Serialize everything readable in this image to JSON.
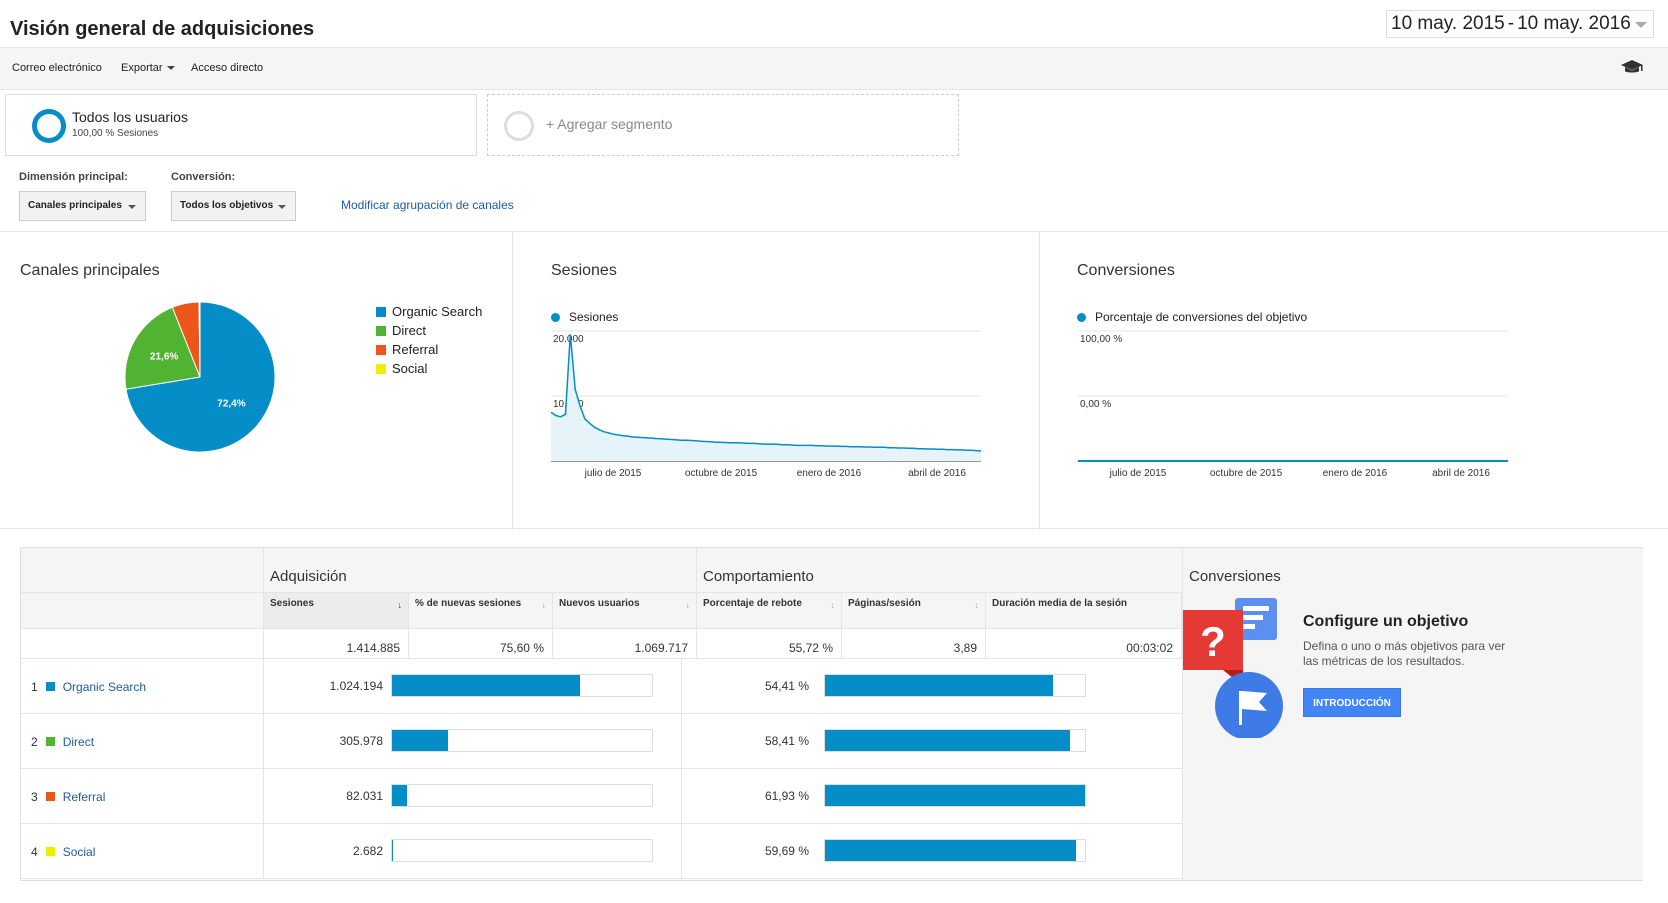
{
  "header": {
    "title": "Visión general de adquisiciones",
    "date_start": "10 may. 2015",
    "date_sep": "-",
    "date_end": "10 may. 2016"
  },
  "toolbar": {
    "email": "Correo electrónico",
    "export": "Exportar",
    "shortcut": "Acceso directo",
    "help_icon": "graduation-cap-icon"
  },
  "segments": {
    "active_name": "Todos los usuarios",
    "active_sub": "100,00 % Sesiones",
    "add_label": "+ Agregar segmento"
  },
  "controls": {
    "dimension_label": "Dimensión principal:",
    "dimension_value": "Canales principales",
    "conversion_label": "Conversión:",
    "conversion_value": "Todos los objetivos",
    "modify_link": "Modificar agrupación de canales"
  },
  "colors": {
    "organic": "#058dc7",
    "direct": "#50b432",
    "referral": "#ed561b",
    "social": "#edef00",
    "link": "#1e5ba3"
  },
  "charts": {
    "pie_title": "Canales principales",
    "sessions_title": "Sesiones",
    "conversions_title": "Conversiones"
  },
  "chart_data": [
    {
      "type": "pie",
      "title": "Canales principales",
      "categories": [
        "Organic Search",
        "Direct",
        "Referral",
        "Social"
      ],
      "values": [
        72.4,
        21.6,
        5.8,
        0.2
      ],
      "data_labels": [
        "72,4%",
        "21,6%",
        "",
        ""
      ],
      "legend_position": "right"
    },
    {
      "type": "area",
      "title": "Sesiones",
      "series": [
        {
          "name": "Sesiones",
          "values": [
            7500,
            7000,
            6800,
            7200,
            19500,
            11000,
            8500,
            6500,
            5800,
            5200,
            4800,
            4500,
            4300,
            4100,
            4000,
            3900,
            3800,
            3700,
            3650,
            3600,
            3550,
            3500,
            3450,
            3400,
            3350,
            3300,
            3250,
            3200,
            3200,
            3150,
            3100,
            3050,
            3000,
            2950,
            2900,
            2900,
            2850,
            2800,
            2800,
            2800,
            2750,
            2700,
            2700,
            2650,
            2600,
            2600,
            2600,
            2550,
            2500,
            2500,
            2450,
            2400,
            2400,
            2400,
            2400,
            2350,
            2350,
            2300,
            2300,
            2300,
            2250,
            2250,
            2200,
            2200,
            2200,
            2150,
            2150,
            2100,
            2100,
            2100,
            2050,
            2050,
            2000,
            2000,
            1950,
            1950,
            1900,
            1900,
            1850,
            1850,
            1800,
            1800,
            1750,
            1750,
            1700,
            1700,
            1650,
            1650,
            1600,
            1550
          ]
        }
      ],
      "y_ticks": [
        "20.000",
        "10.000"
      ],
      "x_ticks": [
        "julio de 2015",
        "octubre de 2015",
        "enero de 2016",
        "abril de 2016"
      ],
      "ylim": [
        0,
        20000
      ],
      "grid": true
    },
    {
      "type": "line",
      "title": "Conversiones",
      "series": [
        {
          "name": "Porcentaje de conversiones del objetivo",
          "values": [
            0,
            0
          ]
        }
      ],
      "y_ticks": [
        "100,00 %",
        "0,00 %"
      ],
      "x_ticks": [
        "julio de 2015",
        "octubre de 2015",
        "enero de 2016",
        "abril de 2016"
      ],
      "ylim": [
        0,
        100
      ],
      "grid": true
    }
  ],
  "table": {
    "group_acquisition": "Adquisición",
    "group_behavior": "Comportamiento",
    "group_conversions": "Conversiones",
    "headers": {
      "sessions": "Sesiones",
      "new_sessions_pct": "% de nuevas sesiones",
      "new_users": "Nuevos usuarios",
      "bounce_rate": "Porcentaje de rebote",
      "pages_per_session": "Páginas/sesión",
      "avg_duration": "Duración media de la sesión"
    },
    "totals": {
      "sessions": "1.414.885",
      "new_sessions_pct": "75,60 %",
      "new_users": "1.069.717",
      "bounce_rate": "55,72 %",
      "pages_per_session": "3,89",
      "avg_duration": "00:03:02"
    },
    "rows": [
      {
        "index": "1",
        "channel": "Organic Search",
        "sessions": "1.024.194",
        "sessions_share": 0.724,
        "bounce": "54,41 %",
        "bounce_share": 0.8785
      },
      {
        "index": "2",
        "channel": "Direct",
        "sessions": "305.978",
        "sessions_share": 0.216,
        "bounce": "58,41 %",
        "bounce_share": 0.9431
      },
      {
        "index": "3",
        "channel": "Referral",
        "sessions": "82.031",
        "sessions_share": 0.058,
        "bounce": "61,93 %",
        "bounce_share": 1.0
      },
      {
        "index": "4",
        "channel": "Social",
        "sessions": "2.682",
        "sessions_share": 0.002,
        "bounce": "59,69 %",
        "bounce_share": 0.9638
      }
    ]
  },
  "conversion_promo": {
    "heading": "Configure un objetivo",
    "description": "Defina o uno o más objetivos para ver las métricas de los resultados.",
    "button": "INTRODUCCIÓN",
    "illustration_icon": "goal-flag-icon"
  }
}
